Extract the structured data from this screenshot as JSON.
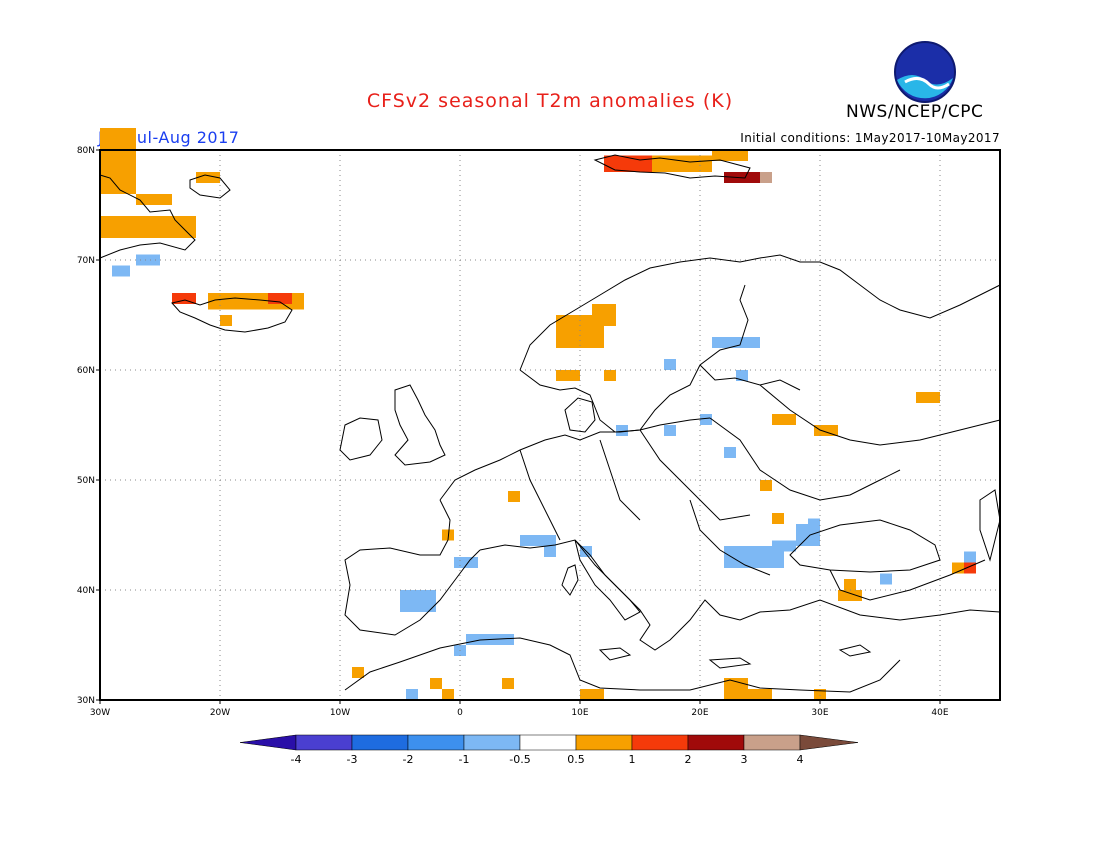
{
  "header": {
    "title": "CFSv2 seasonal T2m anomalies (K)",
    "credit": "NWS/NCEP/CPC",
    "period": "Jun-Jul-Aug 2017",
    "initial_conditions": "Initial conditions: 1May2017-10May2017",
    "logo_text": "NOAA"
  },
  "map": {
    "lon_range": [
      -30,
      45
    ],
    "lat_range": [
      30,
      80
    ],
    "lon_ticks": [
      {
        "value": -30,
        "label": "30W"
      },
      {
        "value": -20,
        "label": "20W"
      },
      {
        "value": -10,
        "label": "10W"
      },
      {
        "value": 0,
        "label": "0"
      },
      {
        "value": 10,
        "label": "10E"
      },
      {
        "value": 20,
        "label": "20E"
      },
      {
        "value": 30,
        "label": "30E"
      },
      {
        "value": 40,
        "label": "40E"
      }
    ],
    "lat_ticks": [
      {
        "value": 80,
        "label": "80N"
      },
      {
        "value": 70,
        "label": "70N"
      },
      {
        "value": 60,
        "label": "60N"
      },
      {
        "value": 50,
        "label": "50N"
      },
      {
        "value": 40,
        "label": "40N"
      },
      {
        "value": 30,
        "label": "30N"
      }
    ],
    "grid": "dotted"
  },
  "legend": {
    "labels": [
      "-4",
      "-3",
      "-2",
      "-1",
      "-0.5",
      "0.5",
      "1",
      "2",
      "3",
      "4"
    ],
    "colors": [
      "#2a0fa8",
      "#4a3fd0",
      "#1e6ce0",
      "#3d90ee",
      "#7db8f4",
      "#ffffff",
      "#f7a000",
      "#f53a0a",
      "#a00a0a",
      "#c9a08a",
      "#7a4a3a"
    ]
  },
  "anomaly_cells": [
    {
      "lon": -30,
      "lat": 76,
      "w": 3,
      "h": 6,
      "class": "1"
    },
    {
      "lon": -27,
      "lat": 75,
      "w": 3,
      "h": 1,
      "class": "1"
    },
    {
      "lon": -30,
      "lat": 72,
      "w": 8,
      "h": 2,
      "class": "1"
    },
    {
      "lon": -22,
      "lat": 77,
      "w": 2,
      "h": 1,
      "class": "1"
    },
    {
      "lon": -29,
      "lat": 68.5,
      "w": 1.5,
      "h": 1,
      "class": "-1"
    },
    {
      "lon": -27,
      "lat": 69.5,
      "w": 2,
      "h": 1,
      "class": "-1"
    },
    {
      "lon": -24,
      "lat": 66,
      "w": 2,
      "h": 1,
      "class": "2"
    },
    {
      "lon": -21,
      "lat": 65.5,
      "w": 8,
      "h": 1.5,
      "class": "1"
    },
    {
      "lon": -16,
      "lat": 66,
      "w": 2,
      "h": 1,
      "class": "2"
    },
    {
      "lon": -20,
      "lat": 64,
      "w": 1,
      "h": 1,
      "class": "1"
    },
    {
      "lon": 12,
      "lat": 78,
      "w": 4,
      "h": 1.5,
      "class": "2"
    },
    {
      "lon": 16,
      "lat": 78,
      "w": 5,
      "h": 1.5,
      "class": "1"
    },
    {
      "lon": 21,
      "lat": 79,
      "w": 3,
      "h": 1,
      "class": "1"
    },
    {
      "lon": 22,
      "lat": 77,
      "w": 3,
      "h": 1,
      "class": "3"
    },
    {
      "lon": 25,
      "lat": 77,
      "w": 1,
      "h": 1,
      "class": "4"
    },
    {
      "lon": 8,
      "lat": 62,
      "w": 4,
      "h": 3,
      "class": "1"
    },
    {
      "lon": 11,
      "lat": 64,
      "w": 2,
      "h": 2,
      "class": "1"
    },
    {
      "lon": 8,
      "lat": 59,
      "w": 2,
      "h": 1,
      "class": "1"
    },
    {
      "lon": 12,
      "lat": 59,
      "w": 1,
      "h": 1,
      "class": "1"
    },
    {
      "lon": 21,
      "lat": 62,
      "w": 4,
      "h": 1,
      "class": "-1"
    },
    {
      "lon": 17,
      "lat": 60,
      "w": 1,
      "h": 1,
      "class": "-1"
    },
    {
      "lon": 23,
      "lat": 59,
      "w": 1,
      "h": 1,
      "class": "-1"
    },
    {
      "lon": 38,
      "lat": 57,
      "w": 2,
      "h": 1,
      "class": "1"
    },
    {
      "lon": 13,
      "lat": 54,
      "w": 1,
      "h": 1,
      "class": "-1"
    },
    {
      "lon": 17,
      "lat": 54,
      "w": 1,
      "h": 1,
      "class": "-1"
    },
    {
      "lon": 20,
      "lat": 55,
      "w": 1,
      "h": 1,
      "class": "-1"
    },
    {
      "lon": 22,
      "lat": 52,
      "w": 1,
      "h": 1,
      "class": "-1"
    },
    {
      "lon": 26,
      "lat": 55,
      "w": 2,
      "h": 1,
      "class": "1"
    },
    {
      "lon": 29.5,
      "lat": 54,
      "w": 2,
      "h": 1,
      "class": "1"
    },
    {
      "lon": 4,
      "lat": 48,
      "w": 1,
      "h": 1,
      "class": "1"
    },
    {
      "lon": 25,
      "lat": 49,
      "w": 1,
      "h": 1,
      "class": "1"
    },
    {
      "lon": 26,
      "lat": 46,
      "w": 1,
      "h": 1,
      "class": "1"
    },
    {
      "lon": -1.5,
      "lat": 44.5,
      "w": 1,
      "h": 1,
      "class": "1"
    },
    {
      "lon": 5,
      "lat": 44,
      "w": 3,
      "h": 1,
      "class": "-1"
    },
    {
      "lon": 7,
      "lat": 43,
      "w": 1,
      "h": 1,
      "class": "-1"
    },
    {
      "lon": -0.5,
      "lat": 42,
      "w": 2,
      "h": 1,
      "class": "-1"
    },
    {
      "lon": 10,
      "lat": 43,
      "w": 1,
      "h": 1,
      "class": "-1"
    },
    {
      "lon": 22,
      "lat": 42,
      "w": 5,
      "h": 2,
      "class": "-1"
    },
    {
      "lon": 26,
      "lat": 43.5,
      "w": 2,
      "h": 1,
      "class": "-1"
    },
    {
      "lon": 28,
      "lat": 44,
      "w": 2,
      "h": 2,
      "class": "-1"
    },
    {
      "lon": 29,
      "lat": 45.5,
      "w": 1,
      "h": 1,
      "class": "-1"
    },
    {
      "lon": 42,
      "lat": 42.5,
      "w": 1,
      "h": 1,
      "class": "-1"
    },
    {
      "lon": 41,
      "lat": 41.5,
      "w": 1,
      "h": 1,
      "class": "1"
    },
    {
      "lon": 42,
      "lat": 41.5,
      "w": 1,
      "h": 1,
      "class": "2"
    },
    {
      "lon": 35,
      "lat": 40.5,
      "w": 1,
      "h": 1,
      "class": "-1"
    },
    {
      "lon": 31.5,
      "lat": 39,
      "w": 2,
      "h": 1,
      "class": "1"
    },
    {
      "lon": 32,
      "lat": 40,
      "w": 1,
      "h": 1,
      "class": "1"
    },
    {
      "lon": -5,
      "lat": 38,
      "w": 3,
      "h": 2,
      "class": "-1"
    },
    {
      "lon": 0.5,
      "lat": 35,
      "w": 4,
      "h": 1,
      "class": "-1"
    },
    {
      "lon": -0.5,
      "lat": 34,
      "w": 1,
      "h": 1,
      "class": "-1"
    },
    {
      "lon": -9,
      "lat": 32,
      "w": 1,
      "h": 1,
      "class": "1"
    },
    {
      "lon": -2.5,
      "lat": 31,
      "w": 1,
      "h": 1,
      "class": "1"
    },
    {
      "lon": -1.5,
      "lat": 30,
      "w": 1,
      "h": 1,
      "class": "1"
    },
    {
      "lon": -4.5,
      "lat": 30,
      "w": 1,
      "h": 1,
      "class": "-1"
    },
    {
      "lon": 3.5,
      "lat": 31,
      "w": 1,
      "h": 1,
      "class": "1"
    },
    {
      "lon": 10,
      "lat": 30,
      "w": 2,
      "h": 1,
      "class": "1"
    },
    {
      "lon": 22,
      "lat": 30,
      "w": 2,
      "h": 2,
      "class": "1"
    },
    {
      "lon": 24,
      "lat": 30,
      "w": 2,
      "h": 1,
      "class": "1"
    },
    {
      "lon": 29.5,
      "lat": 30,
      "w": 1,
      "h": 1,
      "class": "1"
    }
  ]
}
